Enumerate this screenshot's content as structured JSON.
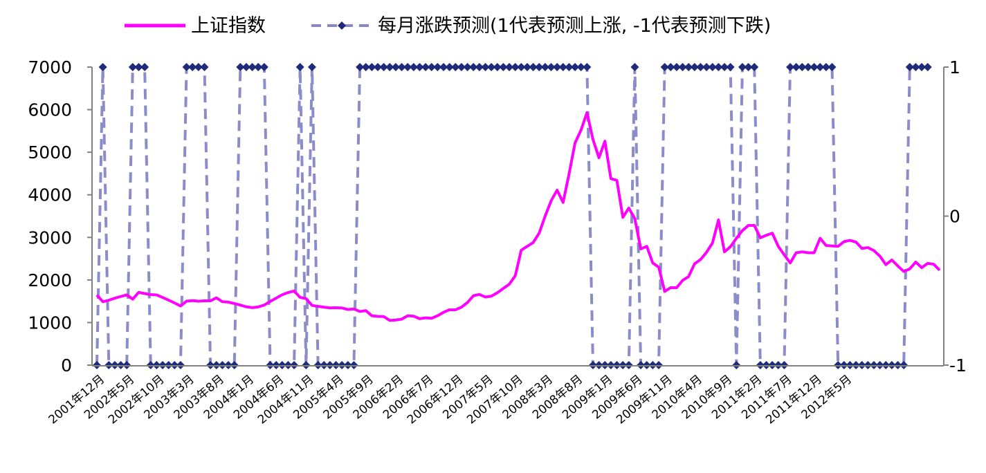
{
  "chart_data": {
    "type": "line",
    "legend": {
      "position": "top",
      "items": [
        {
          "label": "上证指数",
          "color": "#FF00FF",
          "style": "solid"
        },
        {
          "label": "每月涨跌预测(1代表预测上涨, -1代表预测下跌)",
          "color": "#1F2A7A",
          "style": "dashed-diamond"
        }
      ]
    },
    "left_axis": {
      "ylim": [
        0,
        7000
      ],
      "ticks": [
        "0",
        "1000",
        "2000",
        "3000",
        "4000",
        "5000",
        "6000",
        "7000"
      ]
    },
    "right_axis": {
      "ylim": [
        -1,
        1
      ],
      "ticks": [
        "-1",
        "0",
        "1"
      ]
    },
    "category_labels": [
      "2001年12月",
      "2002年5月",
      "2002年10月",
      "2003年3月",
      "2003年8月",
      "2004年1月",
      "2004年6月",
      "2004年11月",
      "2005年4月",
      "2005年9月",
      "2006年2月",
      "2006年7月",
      "2006年12月",
      "2007年5月",
      "2007年10月",
      "2008年3月",
      "2008年8月",
      "2009年1月",
      "2009年6月",
      "2009年11月",
      "2010年4月",
      "2010年9月",
      "2011年2月",
      "2011年7月",
      "2011年12月",
      "2012年5月"
    ],
    "label_interval": 5,
    "start_month": "2001年12月",
    "series": [
      {
        "name": "上证指数",
        "axis": "left",
        "color": "#FF00FF",
        "values": [
          1646,
          1490,
          1524,
          1573,
          1612,
          1650,
          1550,
          1708,
          1681,
          1656,
          1648,
          1590,
          1526,
          1460,
          1390,
          1502,
          1515,
          1502,
          1511,
          1510,
          1580,
          1490,
          1480,
          1446,
          1410,
          1370,
          1350,
          1367,
          1410,
          1497,
          1574,
          1652,
          1705,
          1741,
          1590,
          1562,
          1402,
          1380,
          1360,
          1344,
          1349,
          1342,
          1307,
          1319,
          1260,
          1280,
          1160,
          1145,
          1140,
          1050,
          1060,
          1080,
          1160,
          1150,
          1090,
          1110,
          1100,
          1160,
          1240,
          1300,
          1300,
          1360,
          1470,
          1630,
          1660,
          1600,
          1620,
          1700,
          1800,
          1900,
          2100,
          2700,
          2790,
          2880,
          3100,
          3500,
          3860,
          4110,
          3820,
          4490,
          5218,
          5520,
          5930,
          5300,
          4870,
          5260,
          4380,
          4340,
          3470,
          3690,
          3440,
          2730,
          2790,
          2400,
          2300,
          1730,
          1820,
          1820,
          1990,
          2080,
          2380,
          2480,
          2650,
          2870,
          3410,
          2660,
          2780,
          2980,
          3160,
          3280,
          3280,
          2990,
          3050,
          3100,
          2790,
          2590,
          2400,
          2640,
          2660,
          2640,
          2640,
          2980,
          2810,
          2800,
          2790,
          2900,
          2930,
          2890,
          2740,
          2760,
          2690,
          2560,
          2360,
          2470,
          2330,
          2200,
          2260,
          2420,
          2290,
          2390,
          2370,
          2230
        ]
      },
      {
        "name": "每月涨跌预测(1代表预测上涨, -1代表预测下跌)",
        "axis": "right",
        "color": "#1F2A7A",
        "values": [
          -1,
          1,
          -1,
          -1,
          -1,
          -1,
          1,
          1,
          1,
          -1,
          -1,
          -1,
          -1,
          -1,
          -1,
          1,
          1,
          1,
          1,
          -1,
          -1,
          -1,
          -1,
          -1,
          1,
          1,
          1,
          1,
          1,
          -1,
          -1,
          -1,
          -1,
          -1,
          1,
          -1,
          1,
          -1,
          -1,
          -1,
          -1,
          -1,
          -1,
          -1,
          1,
          1,
          1,
          1,
          1,
          1,
          1,
          1,
          1,
          1,
          1,
          1,
          1,
          1,
          1,
          1,
          1,
          1,
          1,
          1,
          1,
          1,
          1,
          1,
          1,
          1,
          1,
          1,
          1,
          1,
          1,
          1,
          1,
          1,
          1,
          1,
          1,
          1,
          1,
          -1,
          -1,
          -1,
          -1,
          -1,
          -1,
          -1,
          1,
          -1,
          -1,
          -1,
          -1,
          1,
          1,
          1,
          1,
          1,
          1,
          1,
          1,
          1,
          1,
          1,
          1,
          -1,
          1,
          1,
          1,
          -1,
          -1,
          -1,
          -1,
          -1,
          1,
          1,
          1,
          1,
          1,
          1,
          1,
          1,
          -1,
          -1,
          -1,
          -1,
          -1,
          -1,
          -1,
          -1,
          -1,
          -1,
          -1,
          -1,
          1,
          1,
          1,
          1
        ]
      }
    ]
  }
}
